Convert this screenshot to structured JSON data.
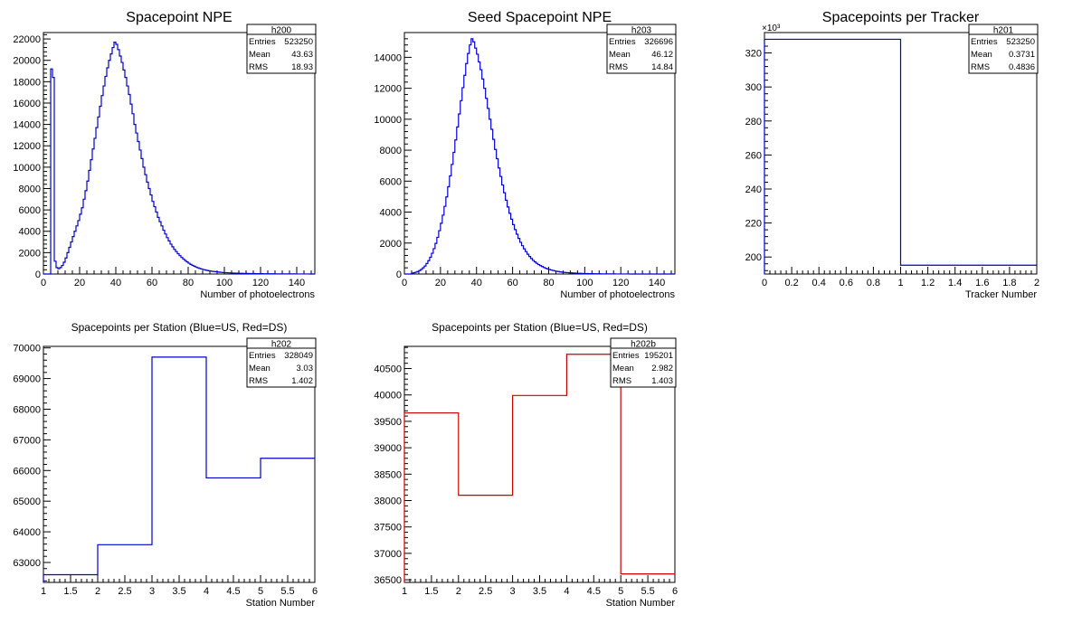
{
  "chart_data": [
    {
      "id": "h200",
      "type": "histogram",
      "title": "Spacepoint NPE",
      "xlabel": "Number of photoelectrons",
      "ylabel": "",
      "xlim": [
        0,
        150
      ],
      "ylim": [
        0,
        22600
      ],
      "xticks": [
        0,
        20,
        40,
        60,
        80,
        100,
        120,
        140
      ],
      "yticks": [
        0,
        2000,
        4000,
        6000,
        8000,
        10000,
        12000,
        14000,
        16000,
        18000,
        20000,
        22000
      ],
      "exponent": "",
      "line_color": "#0000cc",
      "bin_width": 1,
      "bin_start": 0,
      "values": [
        0,
        0,
        0,
        0,
        19200,
        18400,
        1200,
        600,
        500,
        600,
        800,
        1100,
        1500,
        2000,
        2500,
        3000,
        3500,
        4000,
        4500,
        5000,
        5600,
        6200,
        7000,
        7800,
        8700,
        9700,
        10700,
        11700,
        12700,
        13700,
        14700,
        15700,
        16700,
        17600,
        18500,
        19300,
        20000,
        20600,
        21200,
        21700,
        21500,
        21000,
        20400,
        19800,
        19100,
        18400,
        17600,
        16800,
        15900,
        15000,
        14000,
        13200,
        12400,
        11600,
        10800,
        10000,
        9300,
        8600,
        8000,
        7400,
        6800,
        6300,
        5800,
        5300,
        4900,
        4500,
        4100,
        3750,
        3400,
        3100,
        2800,
        2550,
        2300,
        2100,
        1900,
        1720,
        1550,
        1400,
        1260,
        1130,
        1010,
        900,
        810,
        730,
        650,
        580,
        520,
        470,
        420,
        380,
        340,
        310,
        280,
        250,
        230,
        210,
        190,
        170,
        155,
        140,
        130,
        120,
        110,
        100,
        90,
        85,
        80,
        75,
        70,
        65,
        60,
        55,
        52,
        48,
        45,
        42,
        40,
        37,
        35,
        33,
        30,
        28,
        26,
        24,
        22,
        20,
        19,
        18,
        17,
        16,
        15,
        14,
        13,
        12,
        11,
        10,
        9,
        8,
        8,
        7,
        7,
        6,
        6,
        5,
        5,
        4,
        4,
        3,
        3,
        2
      ],
      "stats": {
        "name": "h200",
        "rows": [
          [
            "Entries",
            "523250"
          ],
          [
            "Mean",
            "43.63"
          ],
          [
            "RMS",
            "18.93"
          ]
        ]
      }
    },
    {
      "id": "h203",
      "type": "histogram",
      "title": "Seed Spacepoint NPE",
      "xlabel": "Number of photoelectrons",
      "ylabel": "",
      "xlim": [
        0,
        150
      ],
      "ylim": [
        0,
        15600
      ],
      "xticks": [
        0,
        20,
        40,
        60,
        80,
        100,
        120,
        140
      ],
      "yticks": [
        0,
        2000,
        4000,
        6000,
        8000,
        10000,
        12000,
        14000
      ],
      "exponent": "",
      "line_color": "#0000cc",
      "bin_width": 1,
      "bin_start": 0,
      "values": [
        0,
        0,
        0,
        0,
        50,
        80,
        120,
        160,
        220,
        300,
        400,
        520,
        680,
        860,
        1080,
        1340,
        1640,
        1980,
        2370,
        2800,
        3280,
        3800,
        4370,
        4980,
        5640,
        6340,
        7080,
        7860,
        8660,
        9500,
        10340,
        11200,
        12040,
        12840,
        13600,
        14250,
        14800,
        15200,
        15000,
        14600,
        14200,
        13700,
        13200,
        12600,
        12000,
        11350,
        10700,
        10000,
        9350,
        8700,
        8050,
        7450,
        6850,
        6300,
        5750,
        5250,
        4770,
        4330,
        3920,
        3540,
        3190,
        2870,
        2570,
        2300,
        2050,
        1830,
        1630,
        1450,
        1280,
        1130,
        1000,
        880,
        780,
        690,
        610,
        540,
        480,
        420,
        370,
        330,
        290,
        260,
        230,
        200,
        180,
        160,
        140,
        125,
        110,
        100,
        90,
        80,
        72,
        65,
        58,
        52,
        47,
        42,
        38,
        34,
        31,
        28,
        25,
        23,
        21,
        19,
        17,
        15,
        14,
        12,
        11,
        10,
        9,
        8,
        7,
        7,
        6,
        5,
        5,
        4,
        4,
        4,
        3,
        3,
        3,
        2,
        2,
        2,
        2,
        2,
        2,
        1,
        1,
        1,
        1,
        1,
        1,
        1,
        1,
        1,
        1,
        1,
        0,
        0,
        0,
        0,
        0,
        0,
        0,
        0
      ],
      "stats": {
        "name": "h203",
        "rows": [
          [
            "Entries",
            "326696"
          ],
          [
            "Mean",
            "46.12"
          ],
          [
            "RMS",
            "14.84"
          ]
        ]
      }
    },
    {
      "id": "h201",
      "type": "histogram",
      "title": "Spacepoints per Tracker",
      "xlabel": "Tracker Number",
      "ylabel": "",
      "xlim": [
        0,
        2
      ],
      "ylim": [
        190,
        332
      ],
      "xticks": [
        0,
        0.2,
        0.4,
        0.6,
        0.8,
        1,
        1.2,
        1.4,
        1.6,
        1.8,
        2
      ],
      "yticks": [
        200,
        220,
        240,
        260,
        280,
        300,
        320
      ],
      "exponent": "×10³",
      "line_color": "#0000cc",
      "bin_width": 1,
      "bin_start": 0,
      "values": [
        328.049,
        195.201
      ],
      "stats": {
        "name": "h201",
        "rows": [
          [
            "Entries",
            "523250"
          ],
          [
            "Mean",
            "0.3731"
          ],
          [
            "RMS",
            "0.4836"
          ]
        ]
      }
    },
    {
      "id": "h202",
      "type": "histogram",
      "title": "Spacepoints per Station (Blue=US, Red=DS)",
      "xlabel": "Station Number",
      "ylabel": "",
      "xlim": [
        1,
        6
      ],
      "ylim": [
        62350,
        70050
      ],
      "xticks": [
        1,
        1.5,
        2,
        2.5,
        3,
        3.5,
        4,
        4.5,
        5,
        5.5,
        6
      ],
      "yticks": [
        63000,
        64000,
        65000,
        66000,
        67000,
        68000,
        69000,
        70000
      ],
      "exponent": "",
      "line_color": "#0000cc",
      "bin_width": 1,
      "bin_start": 1,
      "values": [
        62600,
        63580,
        69700,
        65760,
        66400
      ],
      "stats": {
        "name": "h202",
        "rows": [
          [
            "Entries",
            "328049"
          ],
          [
            "Mean",
            "3.03"
          ],
          [
            "RMS",
            "1.402"
          ]
        ]
      }
    },
    {
      "id": "h202b",
      "type": "histogram",
      "title": "Spacepoints per Station (Blue=US, Red=DS)",
      "xlabel": "Station Number",
      "ylabel": "",
      "xlim": [
        1,
        6
      ],
      "ylim": [
        36450,
        40920
      ],
      "xticks": [
        1,
        1.5,
        2,
        2.5,
        3,
        3.5,
        4,
        4.5,
        5,
        5.5,
        6
      ],
      "yticks": [
        36500,
        37000,
        37500,
        38000,
        38500,
        39000,
        39500,
        40000,
        40500
      ],
      "exponent": "",
      "line_color": "#cc0000",
      "bin_width": 1,
      "bin_start": 1,
      "values": [
        39660,
        38100,
        39990,
        40770,
        36610
      ],
      "stats": {
        "name": "h202b",
        "rows": [
          [
            "Entries",
            "195201"
          ],
          [
            "Mean",
            "2.982"
          ],
          [
            "RMS",
            "1.403"
          ]
        ]
      }
    }
  ]
}
